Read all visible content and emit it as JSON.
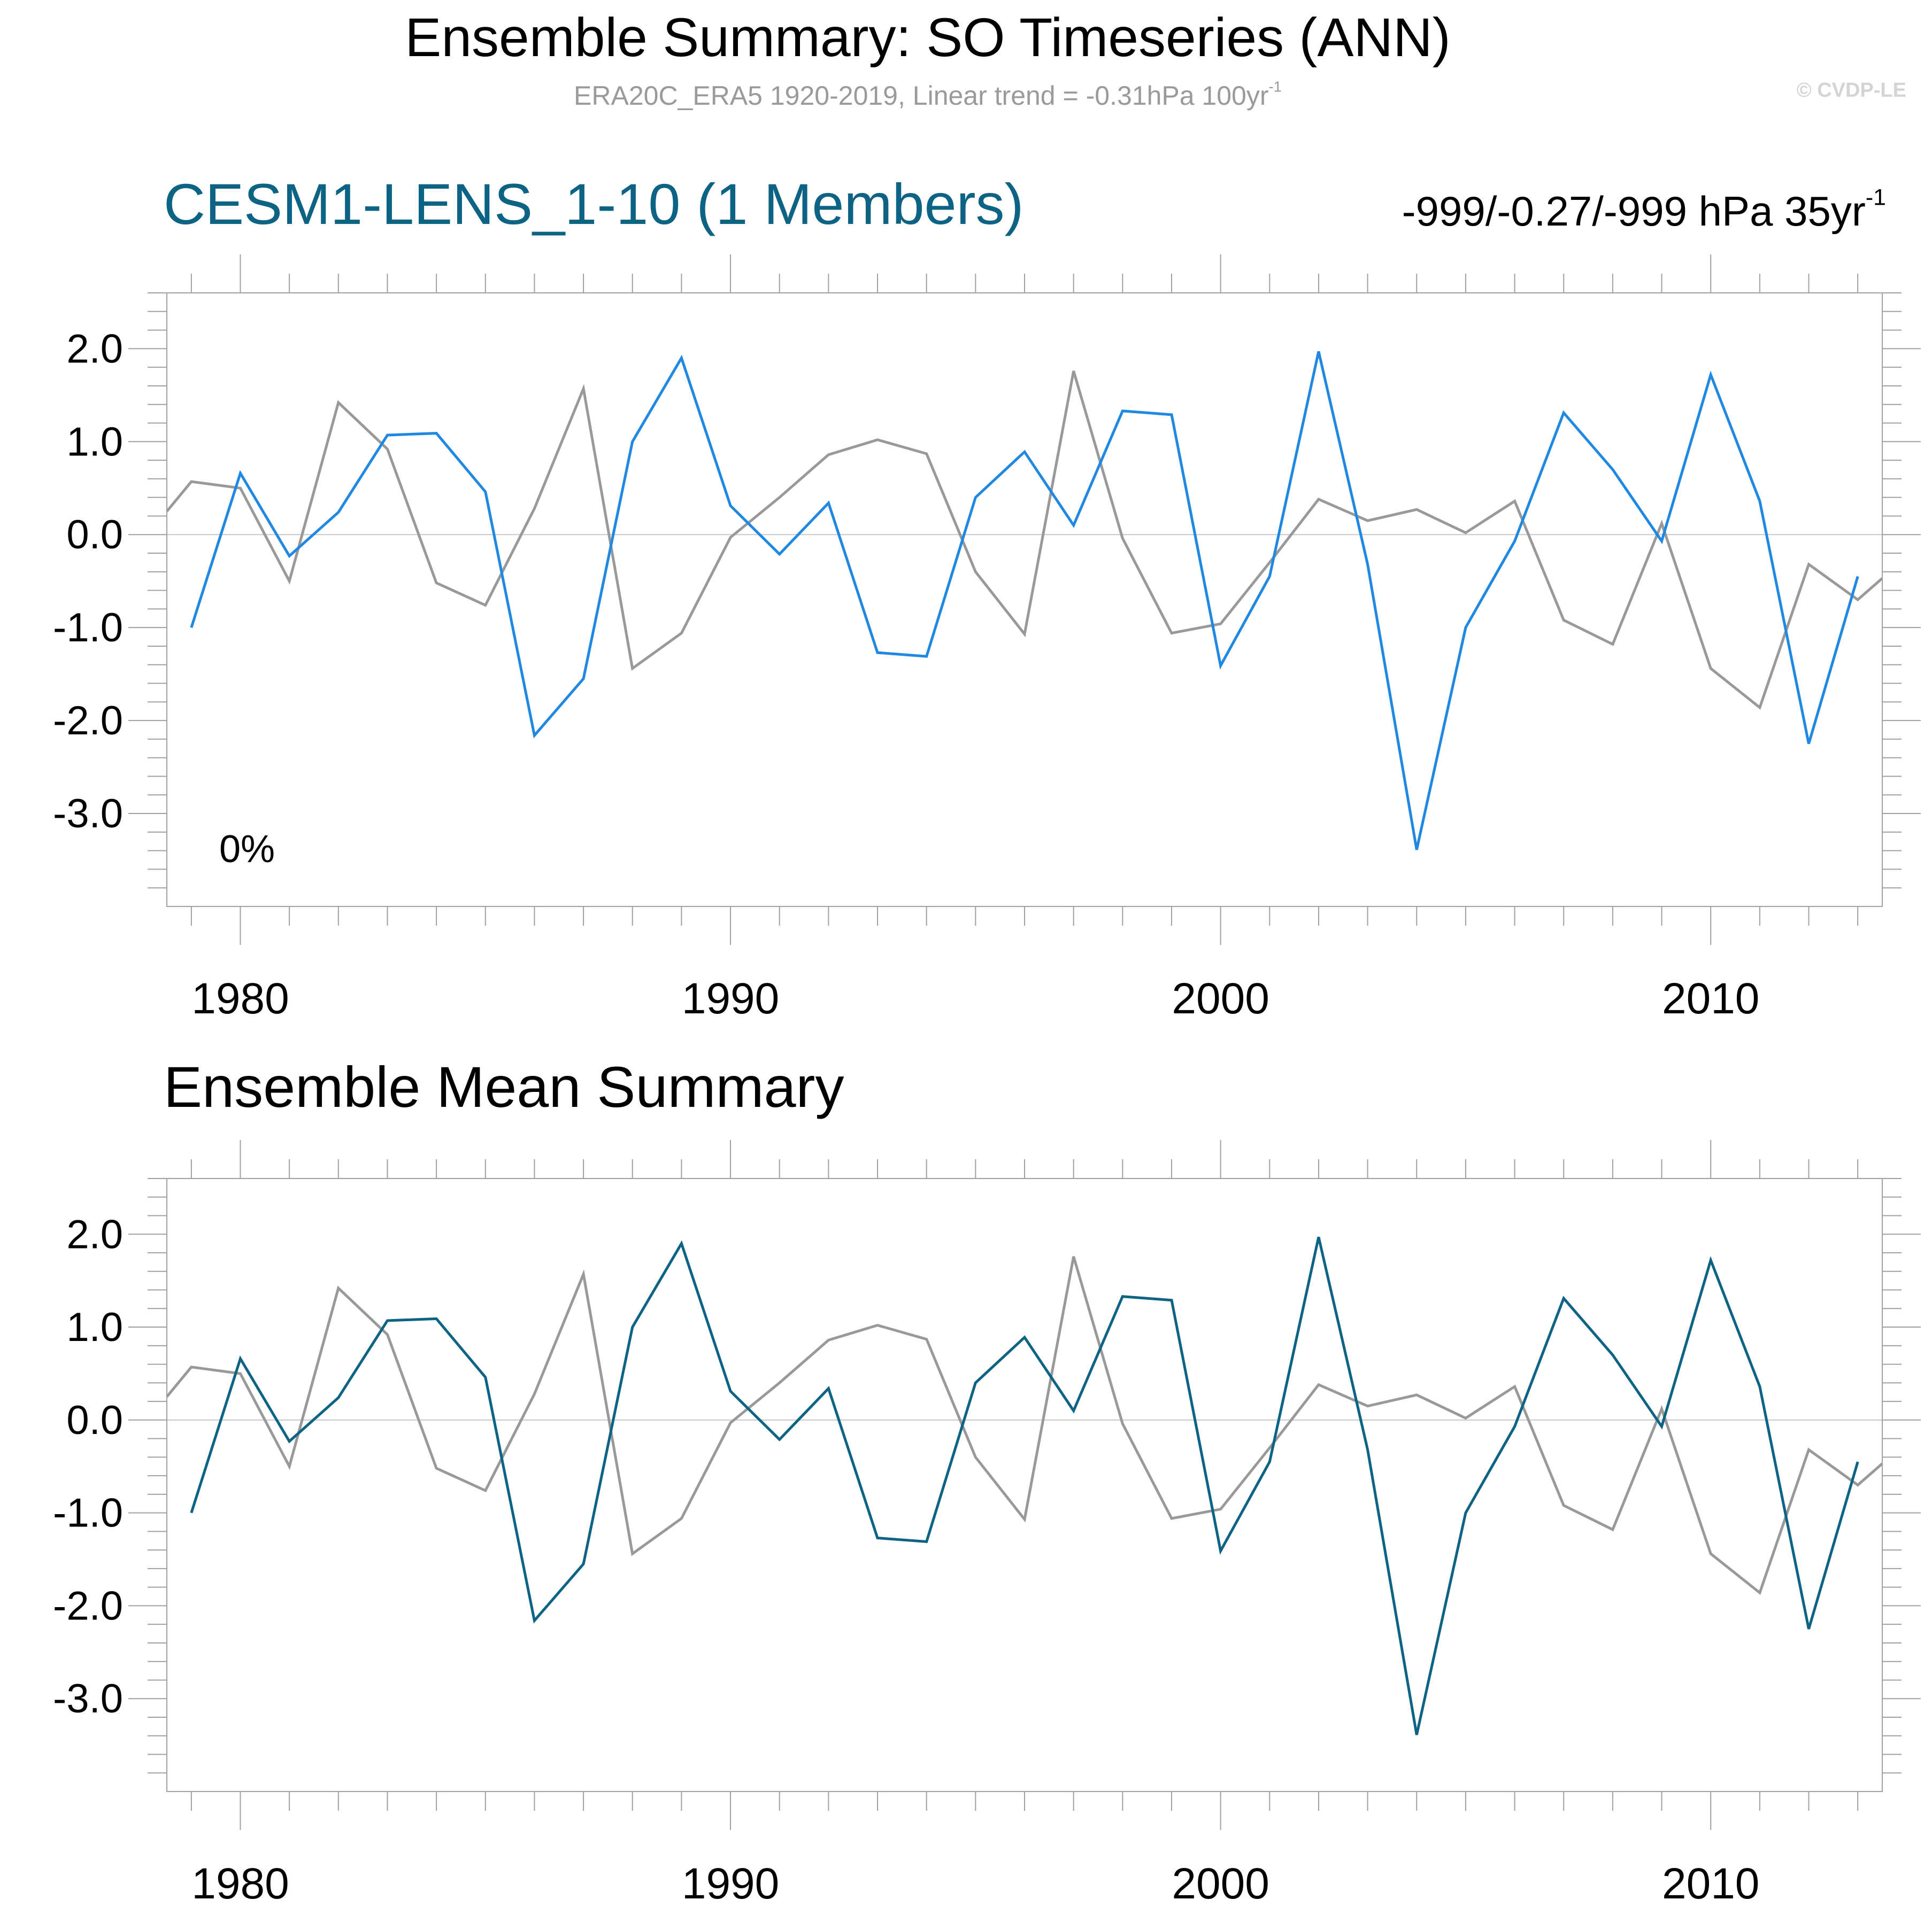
{
  "header": {
    "title": "Ensemble Summary: SO Timeseries (ANN)",
    "subtitle": "ERA20C_ERA5 1920-2019, Linear trend = -0.31hPa 100yr",
    "subtitle_sup": "-1",
    "watermark": "© CVDP-LE"
  },
  "panel1": {
    "title": "CESM1-LENS_1-10 (1 Members)",
    "trend_text": "-999/-0.27/-999 hPa 35yr",
    "trend_sup": "-1",
    "percent_label": "0%"
  },
  "panel2": {
    "title": "Ensemble Mean Summary"
  },
  "colors": {
    "observation": "#999999",
    "model_member": "#1f88e3",
    "ensemble_mean": "#0d6384",
    "frame": "#a0a0a0",
    "zero_line": "#c8c8c8"
  },
  "chart_data": [
    {
      "type": "line",
      "title": "CESM1-LENS_1-10 (1 Members)",
      "xlim": [
        1978.5,
        2013.5
      ],
      "ylim": [
        -4.0,
        2.6
      ],
      "x_ticks": [
        1980,
        1990,
        2000,
        2010
      ],
      "y_ticks": [
        2.0,
        1.0,
        0.0,
        -1.0,
        -2.0,
        -3.0
      ],
      "x_tick_labels": [
        "1980",
        "1990",
        "2000",
        "2010"
      ],
      "y_tick_labels": [
        "2.0",
        "1.0",
        "0.0",
        "-1.0",
        "-2.0",
        "-3.0"
      ],
      "reference_line": 0.0,
      "grid": false,
      "series": [
        {
          "role": "observation",
          "color": "#999999",
          "x": [
            1978.5,
            1979,
            1980,
            1981,
            1982,
            1983,
            1984,
            1985,
            1986,
            1987,
            1988,
            1989,
            1990,
            1991,
            1992,
            1993,
            1994,
            1995,
            1996,
            1997,
            1998,
            1999,
            2000,
            2001,
            2002,
            2003,
            2004,
            2005,
            2006,
            2007,
            2008,
            2009,
            2010,
            2011,
            2012,
            2013,
            2013.5
          ],
          "values": [
            0.25,
            0.57,
            0.5,
            -0.5,
            1.42,
            0.92,
            -0.52,
            -0.76,
            0.28,
            1.57,
            -1.44,
            -1.06,
            -0.03,
            0.4,
            0.86,
            1.02,
            0.87,
            -0.4,
            -1.07,
            1.76,
            -0.04,
            -1.06,
            -0.96,
            -0.3,
            0.38,
            0.15,
            0.27,
            0.02,
            0.36,
            -0.92,
            -1.18,
            0.12,
            -1.44,
            -1.86,
            -0.32,
            -0.7,
            -0.47
          ]
        },
        {
          "role": "model_member",
          "color": "#1f88e3",
          "x": [
            1979,
            1980,
            1981,
            1982,
            1983,
            1984,
            1985,
            1986,
            1987,
            1988,
            1989,
            1990,
            1991,
            1992,
            1993,
            1994,
            1995,
            1996,
            1997,
            1998,
            1999,
            2000,
            2001,
            2002,
            2003,
            2004,
            2005,
            2006,
            2007,
            2008,
            2009,
            2010,
            2011,
            2012,
            2013
          ],
          "values": [
            -1.0,
            0.66,
            -0.23,
            0.24,
            1.07,
            1.09,
            0.46,
            -2.16,
            -1.55,
            1.0,
            1.9,
            0.31,
            -0.21,
            0.34,
            -1.27,
            -1.31,
            0.4,
            0.89,
            0.1,
            1.33,
            1.29,
            -1.41,
            -0.45,
            1.97,
            -0.32,
            -3.39,
            -1.0,
            -0.07,
            1.31,
            0.7,
            -0.07,
            1.72,
            0.36,
            -2.25,
            -0.45
          ]
        }
      ]
    },
    {
      "type": "line",
      "title": "Ensemble Mean Summary",
      "xlim": [
        1978.5,
        2013.5
      ],
      "ylim": [
        -4.0,
        2.6
      ],
      "x_ticks": [
        1980,
        1990,
        2000,
        2010
      ],
      "y_ticks": [
        2.0,
        1.0,
        0.0,
        -1.0,
        -2.0,
        -3.0
      ],
      "x_tick_labels": [
        "1980",
        "1990",
        "2000",
        "2010"
      ],
      "y_tick_labels": [
        "2.0",
        "1.0",
        "0.0",
        "-1.0",
        "-2.0",
        "-3.0"
      ],
      "reference_line": 0.0,
      "grid": false,
      "series": [
        {
          "role": "observation",
          "color": "#999999",
          "x": [
            1978.5,
            1979,
            1980,
            1981,
            1982,
            1983,
            1984,
            1985,
            1986,
            1987,
            1988,
            1989,
            1990,
            1991,
            1992,
            1993,
            1994,
            1995,
            1996,
            1997,
            1998,
            1999,
            2000,
            2001,
            2002,
            2003,
            2004,
            2005,
            2006,
            2007,
            2008,
            2009,
            2010,
            2011,
            2012,
            2013,
            2013.5
          ],
          "values": [
            0.25,
            0.57,
            0.5,
            -0.5,
            1.42,
            0.92,
            -0.52,
            -0.76,
            0.28,
            1.57,
            -1.44,
            -1.06,
            -0.03,
            0.4,
            0.86,
            1.02,
            0.87,
            -0.4,
            -1.07,
            1.76,
            -0.04,
            -1.06,
            -0.96,
            -0.3,
            0.38,
            0.15,
            0.27,
            0.02,
            0.36,
            -0.92,
            -1.18,
            0.12,
            -1.44,
            -1.86,
            -0.32,
            -0.7,
            -0.47
          ]
        },
        {
          "role": "ensemble_mean",
          "color": "#0d6384",
          "x": [
            1979,
            1980,
            1981,
            1982,
            1983,
            1984,
            1985,
            1986,
            1987,
            1988,
            1989,
            1990,
            1991,
            1992,
            1993,
            1994,
            1995,
            1996,
            1997,
            1998,
            1999,
            2000,
            2001,
            2002,
            2003,
            2004,
            2005,
            2006,
            2007,
            2008,
            2009,
            2010,
            2011,
            2012,
            2013
          ],
          "values": [
            -1.0,
            0.66,
            -0.23,
            0.24,
            1.07,
            1.09,
            0.46,
            -2.16,
            -1.55,
            1.0,
            1.9,
            0.31,
            -0.21,
            0.34,
            -1.27,
            -1.31,
            0.4,
            0.89,
            0.1,
            1.33,
            1.29,
            -1.41,
            -0.45,
            1.97,
            -0.32,
            -3.39,
            -1.0,
            -0.07,
            1.31,
            0.7,
            -0.07,
            1.72,
            0.36,
            -2.25,
            -0.45
          ]
        }
      ]
    }
  ]
}
